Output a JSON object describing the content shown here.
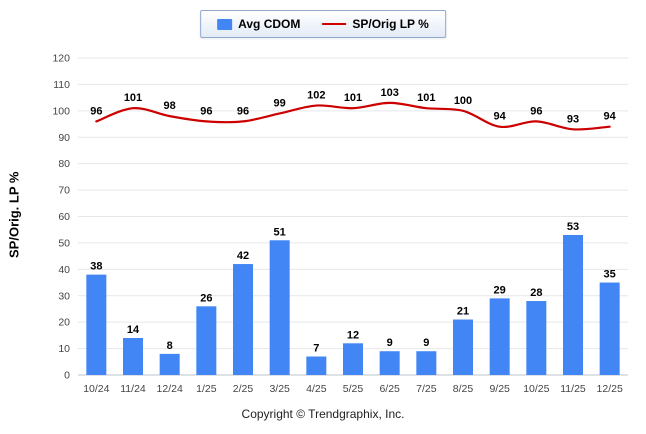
{
  "legend": {
    "items": [
      {
        "label": "Avg CDOM",
        "type": "bar",
        "color": "#4285f4"
      },
      {
        "label": "SP/Orig LP %",
        "type": "line",
        "color": "#cc0000"
      }
    ]
  },
  "y_axis_title": "SP/Orig. LP %",
  "footer": "Copyright © Trendgraphix, Inc.",
  "chart_data": {
    "type": "bar+line",
    "title": "",
    "categories": [
      "10/24",
      "11/24",
      "12/24",
      "1/25",
      "2/25",
      "3/25",
      "4/25",
      "5/25",
      "6/25",
      "7/25",
      "8/25",
      "9/25",
      "10/25",
      "11/25",
      "12/25"
    ],
    "series": [
      {
        "name": "Avg CDOM",
        "type": "bar",
        "color": "#4285f4",
        "values": [
          38,
          14,
          8,
          26,
          42,
          51,
          7,
          12,
          9,
          9,
          21,
          29,
          28,
          53,
          35
        ]
      },
      {
        "name": "SP/Orig LP %",
        "type": "line",
        "color": "#cc0000",
        "values": [
          96,
          101,
          98,
          96,
          96,
          99,
          102,
          101,
          103,
          101,
          100,
          94,
          96,
          93,
          94
        ]
      }
    ],
    "xlabel": "",
    "ylabel": "SP/Orig. LP %",
    "ylim": [
      0,
      120
    ],
    "ytick_interval": 10,
    "grid": true,
    "legend_position": "top",
    "bar_value_labels": true,
    "line_value_labels": true
  }
}
